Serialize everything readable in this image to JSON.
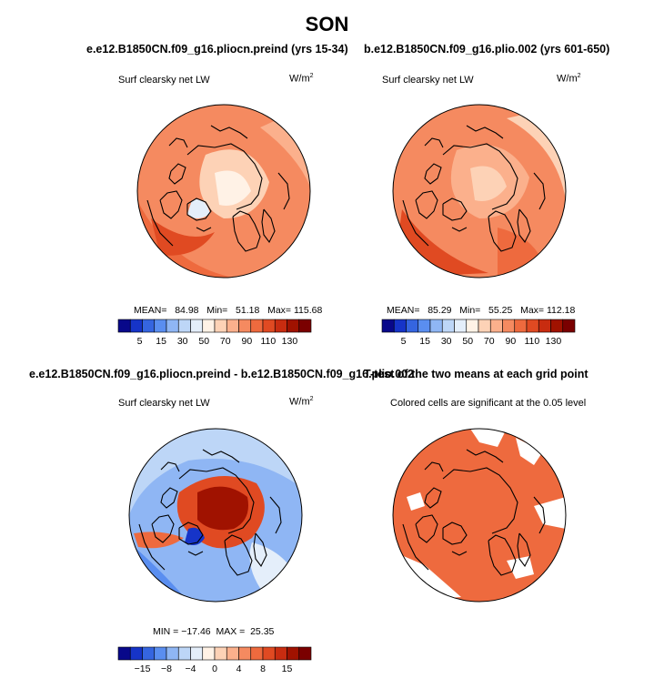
{
  "main_title": "SON",
  "panels": [
    {
      "title": "e.e12.B1850CN.f09_g16.pliocn.preind (yrs 15-34)",
      "variable": "Surf clearsky net LW",
      "units": "W/m",
      "units_exp": "2",
      "stats": "MEAN=   84.98   Min=   51.18   Max= 115.68"
    },
    {
      "title": "b.e12.B1850CN.f09_g16.plio.002 (yrs 601-650)",
      "variable": "Surf clearsky net LW",
      "units": "W/m",
      "units_exp": "2",
      "stats": "MEAN=   85.29   Min=   55.25   Max= 112.18"
    },
    {
      "title": "e.e12.B1850CN.f09_g16.pliocn.preind - b.e12.B1850CN.f09_g16.plio.002",
      "title_overlap": "T-test of the two means at each grid point",
      "variable": "Surf clearsky net LW",
      "units": "W/m",
      "units_exp": "2",
      "stats": "MIN = −17.46  MAX =  25.35"
    },
    {
      "variable": "Colored cells are significant at the 0.05 level"
    }
  ],
  "chart_data": [
    {
      "type": "heatmap",
      "projection": "north-polar-stereographic",
      "colorbar": {
        "labels": [
          "5",
          "15",
          "30",
          "50",
          "70",
          "90",
          "110",
          "130"
        ],
        "colors": [
          "#08088a",
          "#1634c8",
          "#3565e0",
          "#5a8ef0",
          "#8fb6f4",
          "#bdd6f7",
          "#e4eefa",
          "#fff2e6",
          "#fdd2b6",
          "#fbb08c",
          "#f58a60",
          "#ee6a3e",
          "#e04a22",
          "#c82c10",
          "#a01200",
          "#7a0000"
        ]
      },
      "stats": {
        "mean": 84.98,
        "min": 51.18,
        "max": 115.68
      }
    },
    {
      "type": "heatmap",
      "projection": "north-polar-stereographic",
      "colorbar": {
        "labels": [
          "5",
          "15",
          "30",
          "50",
          "70",
          "90",
          "110",
          "130"
        ],
        "colors": [
          "#08088a",
          "#1634c8",
          "#3565e0",
          "#5a8ef0",
          "#8fb6f4",
          "#bdd6f7",
          "#e4eefa",
          "#fff2e6",
          "#fdd2b6",
          "#fbb08c",
          "#f58a60",
          "#ee6a3e",
          "#e04a22",
          "#c82c10",
          "#a01200",
          "#7a0000"
        ]
      },
      "stats": {
        "mean": 85.29,
        "min": 55.25,
        "max": 112.18
      }
    },
    {
      "type": "heatmap",
      "projection": "north-polar-stereographic",
      "colorbar": {
        "labels": [
          "−15",
          "−8",
          "−4",
          "0",
          "4",
          "8",
          "15"
        ],
        "colors": [
          "#08088a",
          "#1634c8",
          "#3565e0",
          "#5a8ef0",
          "#8fb6f4",
          "#bdd6f7",
          "#e4eefa",
          "#fff2e6",
          "#fdd2b6",
          "#fbb08c",
          "#f58a60",
          "#ee6a3e",
          "#e04a22",
          "#c82c10",
          "#a01200",
          "#7a0000"
        ]
      },
      "stats": {
        "min": -17.46,
        "max": 25.35
      }
    },
    {
      "type": "heatmap",
      "projection": "north-polar-stereographic",
      "description_text": "Colored cells are significant at the 0.05 level"
    }
  ]
}
